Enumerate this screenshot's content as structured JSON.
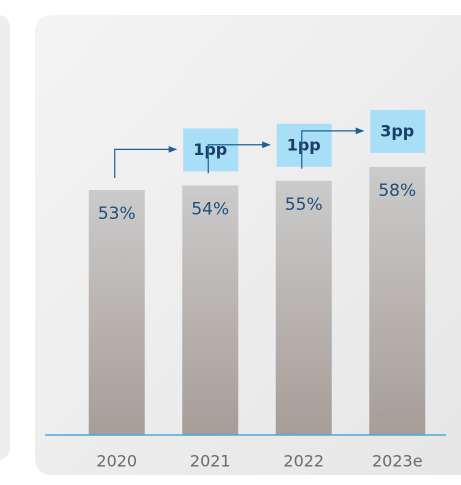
{
  "chart_data": {
    "type": "bar",
    "categories": [
      "2020",
      "2021",
      "2022",
      "2023e"
    ],
    "values": [
      53,
      54,
      55,
      58
    ],
    "value_labels": [
      "53%",
      "54%",
      "55%",
      "58%"
    ],
    "annotations": [
      "1pp",
      "1pp",
      "3pp"
    ],
    "ylim": [
      0,
      90
    ],
    "grid": false
  }
}
